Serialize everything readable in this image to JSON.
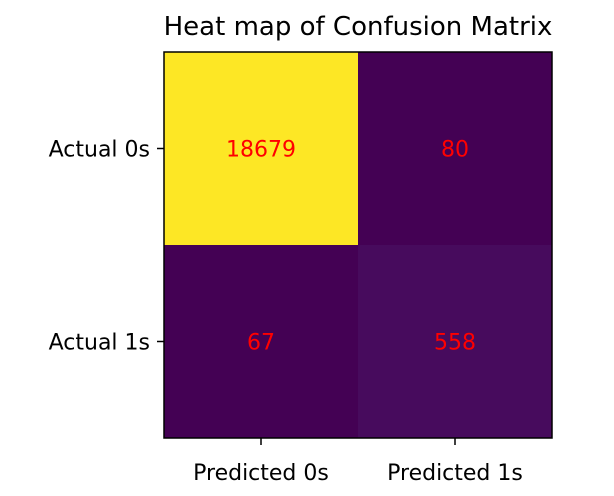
{
  "chart_data": {
    "type": "heatmap",
    "title": "Heat map of Confusion Matrix",
    "x_categories": [
      "Predicted 0s",
      "Predicted 1s"
    ],
    "y_categories": [
      "Actual 0s",
      "Actual 1s"
    ],
    "values": [
      [
        18679,
        80
      ],
      [
        67,
        558
      ]
    ],
    "colormap": "viridis",
    "cell_colors": [
      [
        "#fde725",
        "#440154"
      ],
      [
        "#440154",
        "#470b5d"
      ]
    ],
    "annotation_color": "#ff0000",
    "xlabel": "",
    "ylabel": ""
  }
}
